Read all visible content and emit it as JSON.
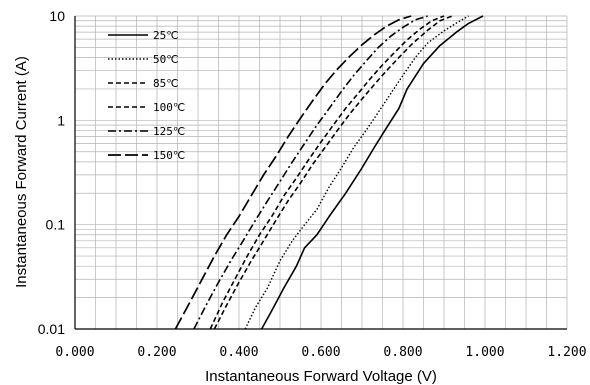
{
  "chart_data": {
    "type": "line",
    "title": "",
    "xlabel": "Instantaneous Forward Voltage (V)",
    "ylabel": "Instantaneous Forward Current (A)",
    "xlim": [
      0,
      1.2
    ],
    "ylim": [
      0.01,
      10
    ],
    "x_scale": "linear",
    "y_scale": "log",
    "grid": true,
    "legend_position": "top-left",
    "x_tick_labels": [
      "0.000",
      "0.200",
      "0.400",
      "0.600",
      "0.800",
      "1.000",
      "1.200"
    ],
    "x_tick_values": [
      0,
      0.2,
      0.4,
      0.6,
      0.8,
      1.0,
      1.2
    ],
    "y_tick_labels": [
      "0.01",
      "0.1",
      "1",
      "10"
    ],
    "y_tick_values": [
      0.01,
      0.1,
      1,
      10
    ],
    "series": [
      {
        "name": "25℃",
        "dash": "solid",
        "x": [
          0.455,
          0.48,
          0.51,
          0.54,
          0.56,
          0.59,
          0.62,
          0.66,
          0.7,
          0.73,
          0.76,
          0.79,
          0.81,
          0.85,
          0.89,
          0.93,
          0.96,
          0.995
        ],
        "y": [
          0.01,
          0.015,
          0.025,
          0.04,
          0.06,
          0.08,
          0.12,
          0.2,
          0.35,
          0.55,
          0.85,
          1.3,
          2,
          3.5,
          5.2,
          7,
          8.5,
          10
        ]
      },
      {
        "name": "50℃",
        "dash": "dotted",
        "x": [
          0.415,
          0.44,
          0.47,
          0.5,
          0.53,
          0.56,
          0.59,
          0.62,
          0.65,
          0.68,
          0.71,
          0.74,
          0.77,
          0.8,
          0.83,
          0.86,
          0.9,
          0.935,
          0.96
        ],
        "y": [
          0.01,
          0.016,
          0.025,
          0.045,
          0.07,
          0.1,
          0.14,
          0.23,
          0.35,
          0.55,
          0.8,
          1.2,
          1.8,
          2.7,
          4,
          5.5,
          7.2,
          8.8,
          10
        ]
      },
      {
        "name": "85℃",
        "dash": "dashed",
        "x": [
          0.34,
          0.37,
          0.4,
          0.43,
          0.46,
          0.49,
          0.52,
          0.55,
          0.58,
          0.61,
          0.64,
          0.67,
          0.7,
          0.73,
          0.76,
          0.79,
          0.82,
          0.86,
          0.89,
          0.92
        ],
        "y": [
          0.01,
          0.017,
          0.028,
          0.045,
          0.07,
          0.11,
          0.17,
          0.25,
          0.38,
          0.55,
          0.8,
          1.15,
          1.6,
          2.2,
          3.0,
          4.0,
          5.3,
          7.3,
          9,
          10
        ]
      },
      {
        "name": "100℃",
        "dash": "dashed",
        "x": [
          0.33,
          0.36,
          0.39,
          0.42,
          0.45,
          0.48,
          0.51,
          0.54,
          0.57,
          0.6,
          0.63,
          0.66,
          0.69,
          0.72,
          0.75,
          0.78,
          0.81,
          0.84,
          0.87,
          0.9
        ],
        "y": [
          0.01,
          0.018,
          0.03,
          0.05,
          0.08,
          0.12,
          0.19,
          0.28,
          0.42,
          0.62,
          0.9,
          1.3,
          1.8,
          2.5,
          3.4,
          4.5,
          5.9,
          7.4,
          9,
          10
        ]
      },
      {
        "name": "125℃",
        "dash": "dashdot",
        "x": [
          0.29,
          0.32,
          0.35,
          0.38,
          0.41,
          0.44,
          0.47,
          0.5,
          0.53,
          0.56,
          0.59,
          0.62,
          0.65,
          0.68,
          0.71,
          0.74,
          0.77,
          0.8,
          0.83,
          0.86
        ],
        "y": [
          0.01,
          0.017,
          0.028,
          0.045,
          0.07,
          0.11,
          0.17,
          0.26,
          0.4,
          0.6,
          0.9,
          1.3,
          1.9,
          2.7,
          3.7,
          5.0,
          6.4,
          7.8,
          9.2,
          10
        ]
      },
      {
        "name": "150℃",
        "dash": "longdash",
        "x": [
          0.245,
          0.28,
          0.31,
          0.34,
          0.37,
          0.4,
          0.43,
          0.46,
          0.49,
          0.52,
          0.55,
          0.58,
          0.61,
          0.64,
          0.67,
          0.7,
          0.73,
          0.76,
          0.79,
          0.82
        ],
        "y": [
          0.01,
          0.018,
          0.03,
          0.05,
          0.08,
          0.12,
          0.19,
          0.3,
          0.45,
          0.7,
          1.05,
          1.55,
          2.25,
          3.1,
          4.1,
          5.3,
          6.6,
          8,
          9.2,
          10
        ]
      }
    ]
  }
}
